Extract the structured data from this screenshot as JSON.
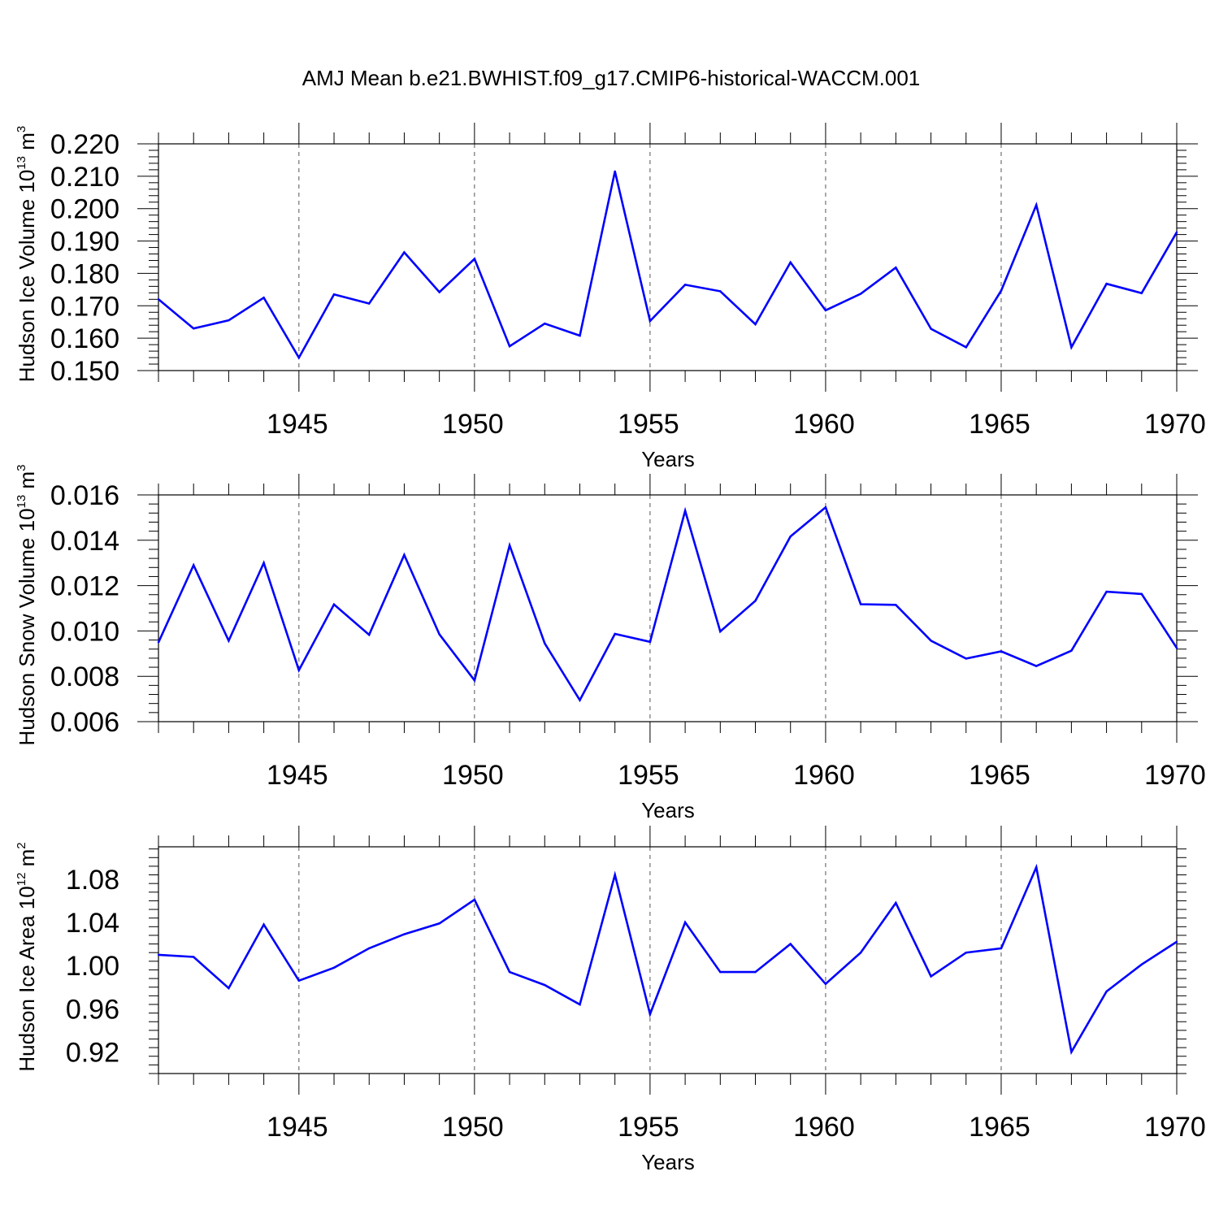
{
  "title": "AMJ Mean b.e21.BWHIST.f09_g17.CMIP6-historical-WACCM.001",
  "colors": {
    "line": "#0000ff",
    "axis": "#000000",
    "grid": "#555555"
  },
  "chart_data": [
    {
      "type": "line",
      "xlabel": "Years",
      "ylabel": {
        "prefix": "Hudson Ice Volume 10",
        "exponent": "13",
        "unit": " m",
        "unit_exponent": "3"
      },
      "xlim": [
        1941,
        1970
      ],
      "ylim": [
        0.15,
        0.22
      ],
      "x_ticks": [
        "1945",
        "1950",
        "1955",
        "1960",
        "1965",
        "1970"
      ],
      "y_ticks": [
        "0.150",
        "0.160",
        "0.170",
        "0.180",
        "0.190",
        "0.200",
        "0.210",
        "0.220"
      ],
      "grid": "vertical dashed at major x ticks",
      "x": [
        1941,
        1942,
        1943,
        1944,
        1945,
        1946,
        1947,
        1948,
        1949,
        1950,
        1951,
        1952,
        1953,
        1954,
        1955,
        1956,
        1957,
        1958,
        1959,
        1960,
        1961,
        1962,
        1963,
        1964,
        1965,
        1966,
        1967,
        1968,
        1969,
        1970
      ],
      "values": [
        0.172,
        0.163,
        0.1655,
        0.1725,
        0.154,
        0.1735,
        0.1707,
        0.1865,
        0.1742,
        0.1845,
        0.1575,
        0.1645,
        0.1608,
        0.2115,
        0.1653,
        0.1765,
        0.1745,
        0.1643,
        0.1834,
        0.1686,
        0.1737,
        0.1818,
        0.1629,
        0.1572,
        0.1747,
        0.2011,
        0.1572,
        0.1768,
        0.1739,
        0.1927
      ]
    },
    {
      "type": "line",
      "xlabel": "Years",
      "ylabel": {
        "prefix": "Hudson Snow Volume 10",
        "exponent": "13",
        "unit": " m",
        "unit_exponent": "3"
      },
      "xlim": [
        1941,
        1970
      ],
      "ylim": [
        0.006,
        0.016
      ],
      "x_ticks": [
        "1945",
        "1950",
        "1955",
        "1960",
        "1965",
        "1970"
      ],
      "y_ticks": [
        "0.006",
        "0.008",
        "0.010",
        "0.012",
        "0.014",
        "0.016"
      ],
      "grid": "vertical dashed at major x ticks",
      "x": [
        1941,
        1942,
        1943,
        1944,
        1945,
        1946,
        1947,
        1948,
        1949,
        1950,
        1951,
        1952,
        1953,
        1954,
        1955,
        1956,
        1957,
        1958,
        1959,
        1960,
        1961,
        1962,
        1963,
        1964,
        1965,
        1966,
        1967,
        1968,
        1969,
        1970
      ],
      "values": [
        0.0095,
        0.0129,
        0.00957,
        0.013,
        0.00827,
        0.01117,
        0.00983,
        0.01335,
        0.00985,
        0.00782,
        0.01377,
        0.00945,
        0.00695,
        0.00987,
        0.00952,
        0.0153,
        0.00998,
        0.01133,
        0.01417,
        0.01545,
        0.01118,
        0.01115,
        0.00957,
        0.00878,
        0.0091,
        0.00845,
        0.00913,
        0.01173,
        0.01163,
        0.00925
      ]
    },
    {
      "type": "line",
      "xlabel": "Years",
      "ylabel": {
        "prefix": "Hudson Ice Area 10",
        "exponent": "12",
        "unit": " m",
        "unit_exponent": "2"
      },
      "xlim": [
        1941,
        1970
      ],
      "ylim": [
        0.9,
        1.11
      ],
      "x_ticks": [
        "1945",
        "1950",
        "1955",
        "1960",
        "1965",
        "1970"
      ],
      "y_ticks": [
        "0.92",
        "0.96",
        "1.00",
        "1.04",
        "1.08"
      ],
      "grid": "vertical dashed at major x ticks",
      "x": [
        1941,
        1942,
        1943,
        1944,
        1945,
        1946,
        1947,
        1948,
        1949,
        1950,
        1951,
        1952,
        1953,
        1954,
        1955,
        1956,
        1957,
        1958,
        1959,
        1960,
        1961,
        1962,
        1963,
        1964,
        1965,
        1966,
        1967,
        1968,
        1969,
        1970
      ],
      "values": [
        1.01,
        1.008,
        0.979,
        1.038,
        0.986,
        0.998,
        1.016,
        1.029,
        1.039,
        1.061,
        0.994,
        0.982,
        0.964,
        1.084,
        0.955,
        1.04,
        0.994,
        0.994,
        1.02,
        0.983,
        1.012,
        1.058,
        0.99,
        1.012,
        1.016,
        1.091,
        0.92,
        0.976,
        1.001,
        1.022
      ]
    }
  ]
}
